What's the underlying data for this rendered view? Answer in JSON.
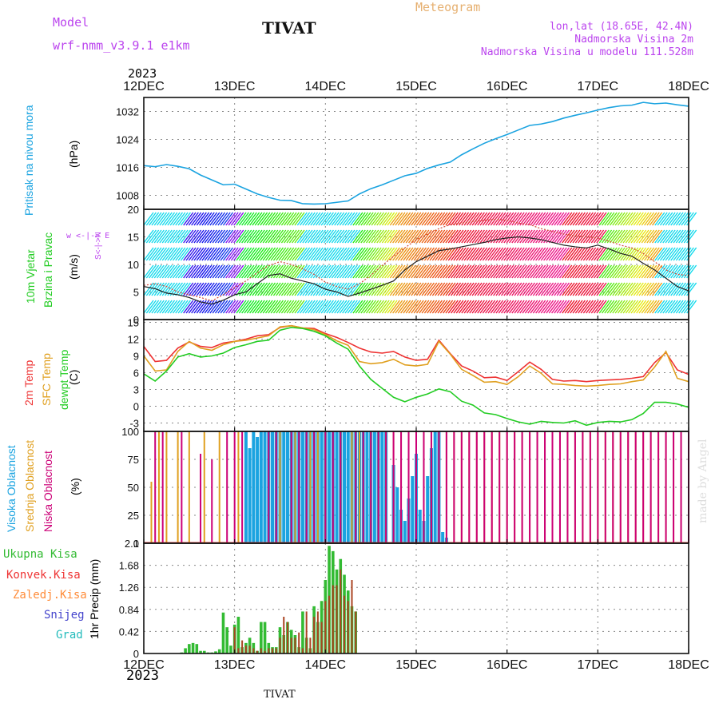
{
  "header": {
    "model_label": "Model",
    "model_name": "wrf-nmm_v3.9.1 e1km",
    "title": "TIVAT",
    "meteogram": "Meteogram",
    "lonlat": "lon,lat (18.65E, 42.4N)",
    "elevation": "Nadmorska Visina 2m",
    "model_elevation": "Nadmorska Visina u modelu 111.528m",
    "year_top": "2023"
  },
  "footer": {
    "year_bottom": "2023",
    "station": "TIVAT",
    "credit": "made by Angel"
  },
  "colors": {
    "pressure": "#1aa3e0",
    "temp2m": "#ee3333",
    "sfc": "#e0a020",
    "dewpt": "#22cc22",
    "high": "#1aa3e0",
    "mid": "#e0a020",
    "low": "#cc0077",
    "total_precip": "#33bb33",
    "conv": "#aa4422",
    "frozen": "#ff8c3a",
    "snow": "#4444cc",
    "grad": "#22bbbb",
    "label_purple": "#bb44ee",
    "label_orange": "#e6b070"
  },
  "panels": {
    "pressure": {
      "label": "Pritisak na nivou mora",
      "unit": "(hPa)"
    },
    "wind": {
      "label_a": "10m Vjetar",
      "label_b": "Brzina i Pravac",
      "unit": "(m/s)",
      "compass": "w <-|-> E",
      "compass_sub": "S<-|->N"
    },
    "temp": {
      "label_a": "2m Temp",
      "label_b": "SFC Temp",
      "label_c": "dewpt Temp",
      "unit": "(C)"
    },
    "cloud": {
      "label_a": "Visoka Oblacnost",
      "label_b": "Srednja Oblacnost",
      "label_c": "Niska Oblacnost",
      "unit": "(%)"
    },
    "precip": {
      "ylabel": "1hr Precip (mm)",
      "legend": [
        "Ukupna Kisa",
        "Konvek.Kisa",
        "Zaledj.Kisa",
        "Snijeg",
        "Grad"
      ]
    }
  },
  "chart_data": [
    {
      "type": "line",
      "ylabel": "Pritisak na nivou mora (hPa)",
      "ylim": [
        1004,
        1036
      ],
      "yticks": [
        1008,
        1016,
        1024,
        1032
      ],
      "xlim": [
        0,
        144
      ],
      "xticks": [
        "12DEC",
        "13DEC",
        "14DEC",
        "15DEC",
        "16DEC",
        "17DEC",
        "18DEC"
      ],
      "x": [
        0,
        3,
        6,
        9,
        12,
        15,
        18,
        21,
        24,
        27,
        30,
        33,
        36,
        39,
        42,
        45,
        48,
        51,
        54,
        57,
        60,
        63,
        66,
        69,
        72,
        75,
        78,
        81,
        84,
        87,
        90,
        93,
        96,
        99,
        102,
        105,
        108,
        111,
        114,
        117,
        120,
        123,
        126,
        129,
        132,
        135,
        138,
        141,
        144
      ],
      "series": [
        {
          "values": [
            1016.5,
            1016.2,
            1016.8,
            1016.3,
            1015.6,
            1013.8,
            1012.4,
            1011.0,
            1011.2,
            1009.8,
            1008.4,
            1007.4,
            1006.6,
            1006.5,
            1005.6,
            1005.5,
            1005.6,
            1006.0,
            1006.4,
            1008.4,
            1009.9,
            1011.0,
            1012.3,
            1013.6,
            1014.3,
            1015.7,
            1016.7,
            1017.5,
            1019.6,
            1021.3,
            1022.9,
            1024.2,
            1025.4,
            1026.7,
            1028.0,
            1028.4,
            1029.1,
            1030.1,
            1030.9,
            1031.6,
            1032.4,
            1033.1,
            1033.6,
            1033.8,
            1034.6,
            1034.2,
            1034.4,
            1033.9,
            1033.5
          ]
        }
      ]
    },
    {
      "type": "line",
      "ylabel": "10m Vjetar Brzina i Pravac (m/s)",
      "ylim": [
        0,
        20
      ],
      "yticks": [
        0,
        5,
        10,
        15,
        20
      ],
      "x": [
        0,
        3,
        6,
        9,
        12,
        15,
        18,
        21,
        24,
        27,
        30,
        33,
        36,
        39,
        42,
        45,
        48,
        51,
        54,
        57,
        60,
        63,
        66,
        69,
        72,
        75,
        78,
        81,
        84,
        87,
        90,
        93,
        96,
        99,
        102,
        105,
        108,
        111,
        114,
        117,
        120,
        123,
        126,
        129,
        132,
        135,
        138,
        141,
        144
      ],
      "series": [
        {
          "values": [
            6.0,
            5.6,
            4.8,
            4.5,
            4.0,
            3.2,
            2.8,
            3.5,
            4.5,
            5.0,
            6.5,
            8.0,
            8.3,
            7.5,
            7.0,
            6.5,
            5.5,
            5.0,
            4.2,
            4.8,
            5.5,
            6.2,
            7.0,
            9.0,
            10.5,
            11.5,
            12.5,
            12.8,
            13.2,
            13.6,
            14.0,
            14.5,
            14.8,
            15.0,
            14.8,
            14.5,
            14.0,
            13.5,
            13.2,
            13.0,
            13.5,
            12.8,
            12.0,
            11.5,
            10.2,
            9.0,
            7.5,
            6.0,
            5.2
          ]
        },
        {
          "values": [
            6.2,
            6.5,
            6.0,
            5.0,
            4.5,
            4.0,
            3.4,
            4.5,
            5.8,
            7.0,
            8.5,
            9.8,
            10.5,
            10.0,
            9.2,
            8.2,
            6.8,
            6.0,
            5.5,
            6.5,
            8.0,
            9.8,
            11.5,
            13.0,
            14.5,
            15.5,
            16.5,
            17.2,
            17.5,
            17.8,
            18.0,
            18.2,
            18.0,
            17.5,
            17.2,
            16.5,
            16.0,
            15.5,
            15.2,
            15.0,
            14.8,
            14.2,
            13.5,
            13.0,
            12.0,
            10.5,
            9.0,
            8.2,
            8.0
          ]
        }
      ]
    },
    {
      "type": "line",
      "ylabel": "Temp (C)",
      "ylim": [
        -4.5,
        15.5
      ],
      "yticks": [
        -3,
        0,
        3,
        6,
        9,
        12,
        15
      ],
      "x": [
        0,
        3,
        6,
        9,
        12,
        15,
        18,
        21,
        24,
        27,
        30,
        33,
        36,
        39,
        42,
        45,
        48,
        51,
        54,
        57,
        60,
        63,
        66,
        69,
        72,
        75,
        78,
        81,
        84,
        87,
        90,
        93,
        96,
        99,
        102,
        105,
        108,
        111,
        114,
        117,
        120,
        123,
        126,
        129,
        132,
        135,
        138,
        141,
        144
      ],
      "series": [
        {
          "name": "2m Temp",
          "values": [
            10.7,
            8.0,
            8.2,
            10.4,
            11.5,
            10.7,
            10.5,
            11.3,
            11.6,
            12.0,
            12.6,
            12.8,
            14.1,
            14.4,
            14.0,
            13.9,
            13.0,
            12.3,
            11.4,
            10.4,
            9.7,
            9.5,
            9.8,
            8.8,
            8.2,
            8.4,
            11.8,
            9.4,
            7.2,
            6.3,
            5.1,
            5.2,
            4.6,
            6.2,
            7.9,
            6.6,
            4.8,
            4.5,
            4.6,
            4.4,
            4.6,
            4.7,
            4.8,
            5.0,
            5.3,
            7.8,
            9.6,
            6.5,
            5.7
          ]
        },
        {
          "name": "SFC Temp",
          "values": [
            9.0,
            6.3,
            6.5,
            9.8,
            11.6,
            10.4,
            10.0,
            11.0,
            11.6,
            11.8,
            12.2,
            12.6,
            14.2,
            14.4,
            14.0,
            13.7,
            12.8,
            11.7,
            10.9,
            8.0,
            7.6,
            7.8,
            8.4,
            7.4,
            7.2,
            7.5,
            11.6,
            9.3,
            6.6,
            5.5,
            4.3,
            4.4,
            3.9,
            5.3,
            7.2,
            5.9,
            4.0,
            3.9,
            3.7,
            3.6,
            3.7,
            3.9,
            4.0,
            4.4,
            4.7,
            7.0,
            9.8,
            5.0,
            4.4
          ]
        },
        {
          "name": "dewpt Temp",
          "values": [
            5.8,
            4.5,
            6.3,
            8.8,
            9.4,
            8.8,
            9.0,
            9.5,
            10.5,
            11.0,
            11.6,
            11.8,
            13.6,
            14.1,
            13.9,
            13.4,
            12.6,
            11.3,
            10.2,
            7.2,
            4.8,
            3.2,
            1.6,
            0.8,
            1.6,
            2.2,
            3.1,
            2.6,
            0.9,
            0.2,
            -1.2,
            -1.5,
            -2.2,
            -2.8,
            -3.2,
            -2.7,
            -2.9,
            -3.0,
            -2.6,
            -3.4,
            -2.9,
            -2.7,
            -2.8,
            -2.4,
            -1.3,
            0.7,
            0.7,
            0.4,
            -0.2
          ]
        }
      ]
    },
    {
      "type": "bar",
      "ylabel": "Oblacnost (%)",
      "ylim": [
        0,
        100
      ],
      "yticks": [
        0,
        25,
        50,
        75,
        100
      ],
      "series": [
        {
          "name": "Visoka Oblacnost",
          "hours": [
            27,
            28,
            29,
            30,
            31,
            32,
            33,
            34,
            35,
            36,
            37,
            38,
            39,
            40,
            41,
            42,
            43,
            44,
            45,
            46,
            47,
            48,
            49,
            50,
            51,
            52,
            53,
            54,
            55,
            56,
            57,
            58,
            59,
            60,
            61,
            62,
            63,
            64,
            66,
            67,
            68,
            69,
            70,
            71,
            72,
            73,
            74,
            75,
            76,
            77,
            78,
            79,
            80
          ],
          "values": [
            100,
            85,
            100,
            95,
            100,
            100,
            100,
            100,
            100,
            100,
            100,
            100,
            100,
            100,
            100,
            100,
            100,
            100,
            100,
            100,
            100,
            100,
            100,
            100,
            100,
            100,
            100,
            100,
            100,
            100,
            100,
            100,
            100,
            100,
            100,
            100,
            100,
            100,
            70,
            50,
            30,
            20,
            40,
            60,
            80,
            30,
            20,
            60,
            85,
            100,
            100,
            10,
            5
          ]
        },
        {
          "name": "Srednja Oblacnost",
          "hours": [
            2,
            4,
            6,
            9,
            12,
            16,
            20,
            25,
            36,
            40,
            44,
            46,
            48,
            52,
            55,
            57,
            60,
            62,
            64,
            66,
            68,
            70,
            72,
            74,
            76,
            78,
            80,
            82,
            84,
            86,
            88,
            90,
            92,
            94,
            96,
            98,
            100,
            102,
            104,
            106,
            108,
            110,
            112,
            114,
            116,
            118,
            120,
            122,
            124,
            126,
            128,
            130,
            132,
            134,
            136,
            138,
            140,
            142,
            144
          ],
          "values": [
            55,
            100,
            100,
            100,
            100,
            100,
            100,
            100,
            100,
            100,
            100,
            100,
            100,
            100,
            100,
            100,
            100,
            100,
            100,
            100,
            100,
            100,
            100,
            100,
            100,
            100,
            100,
            100,
            100,
            100,
            100,
            100,
            100,
            100,
            100,
            100,
            100,
            100,
            100,
            100,
            100,
            100,
            100,
            100,
            100,
            100,
            100,
            100,
            100,
            100,
            100,
            100,
            100,
            100,
            100,
            100,
            100,
            100,
            100
          ]
        },
        {
          "name": "Niska Oblacnost",
          "hours": [
            3,
            5,
            10,
            15,
            18,
            22,
            24,
            26,
            33,
            35,
            39,
            41,
            43,
            45,
            48,
            50,
            52,
            56,
            58,
            60,
            62,
            64,
            66,
            68,
            70,
            72,
            74,
            76,
            78,
            80,
            82,
            84,
            86,
            88,
            90,
            92,
            94,
            96,
            98,
            100,
            102,
            104,
            106,
            108,
            110,
            112,
            114,
            116,
            118,
            120,
            122,
            124,
            126,
            128,
            130,
            132,
            134,
            136,
            138,
            140,
            142,
            144
          ],
          "values": [
            100,
            100,
            100,
            80,
            75,
            100,
            100,
            100,
            100,
            100,
            100,
            100,
            100,
            100,
            100,
            100,
            100,
            100,
            100,
            100,
            100,
            100,
            100,
            100,
            100,
            100,
            100,
            100,
            100,
            100,
            100,
            100,
            100,
            100,
            100,
            100,
            100,
            100,
            100,
            100,
            100,
            100,
            100,
            100,
            100,
            100,
            100,
            100,
            100,
            100,
            100,
            100,
            100,
            100,
            100,
            100,
            100,
            100,
            100,
            100,
            100,
            100
          ]
        }
      ]
    },
    {
      "type": "bar",
      "ylabel": "1hr Precip (mm)",
      "ylim": [
        0,
        2.1
      ],
      "yticks": [
        0,
        0.42,
        0.84,
        1.26,
        1.68,
        2.1
      ],
      "series": [
        {
          "name": "Ukupna Kisa",
          "hours": [
            10,
            11,
            12,
            13,
            14,
            15,
            16,
            17,
            18,
            19,
            20,
            21,
            22,
            23,
            24,
            25,
            26,
            27,
            28,
            29,
            30,
            31,
            32,
            33,
            34,
            35,
            36,
            37,
            38,
            39,
            40,
            41,
            42,
            43,
            44,
            45,
            46,
            47,
            48,
            49,
            50,
            51,
            52,
            53,
            54,
            55,
            56
          ],
          "values": [
            0.02,
            0.1,
            0.18,
            0.2,
            0.18,
            0.05,
            0.05,
            0.02,
            0.02,
            0.04,
            0.08,
            0.78,
            0.5,
            0.15,
            0.55,
            0.7,
            0.12,
            0.2,
            0.3,
            0.2,
            0.05,
            0.6,
            0.6,
            0.2,
            0.12,
            0.12,
            0.5,
            0.35,
            0.6,
            0.45,
            0.35,
            0.12,
            0.8,
            0.3,
            0.1,
            0.9,
            0.6,
            1.0,
            1.4,
            2.05,
            1.95,
            1.6,
            1.8,
            1.5,
            1.2,
            0.9,
            0.8
          ]
        },
        {
          "name": "Konvek.Kisa",
          "hours": [
            24,
            25,
            26,
            27,
            28,
            29,
            30,
            31,
            32,
            33,
            34,
            35,
            36,
            37,
            38,
            39,
            40,
            41,
            42,
            43,
            44,
            45,
            46,
            47,
            48,
            49,
            50,
            51,
            52,
            53,
            54,
            55,
            56
          ],
          "values": [
            0.5,
            0.1,
            0.25,
            0.15,
            0.15,
            0.1,
            0.05,
            0.1,
            0.05,
            0.1,
            0.1,
            0.1,
            0.3,
            0.7,
            0.6,
            0.3,
            0.3,
            0.4,
            0.1,
            0.8,
            0.3,
            0.7,
            0.8,
            0.6,
            1.0,
            1.1,
            1.3,
            1.3,
            1.6,
            1.1,
            1.0,
            1.4,
            0.8
          ]
        },
        {
          "name": "Zaledj.Kisa",
          "hours": [],
          "values": []
        },
        {
          "name": "Snijeg",
          "hours": [],
          "values": []
        },
        {
          "name": "Grad",
          "hours": [],
          "values": []
        }
      ]
    }
  ]
}
